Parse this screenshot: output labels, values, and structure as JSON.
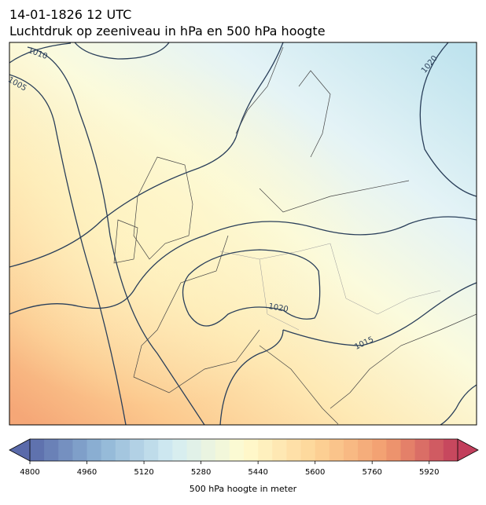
{
  "chart_data": {
    "type": "map",
    "title": "14-01-1826 12 UTC",
    "subtitle": "Luchtdruk op zeeniveau in hPa en 500 hPa hoogte",
    "contour_labels": [
      1010,
      1005,
      1020,
      1020,
      1015
    ],
    "colorbar": {
      "label": "500 hPa hoogte in meter",
      "lim": [
        4800,
        6000
      ],
      "step": 40,
      "ticks": [
        4800,
        4960,
        5120,
        5280,
        5440,
        5600,
        5760,
        5920
      ],
      "colormap": [
        "#5a6aaa",
        "#8fb6d6",
        "#d4ecf3",
        "#fffbcf",
        "#fdd597",
        "#f29c6f",
        "#c23f5c"
      ]
    }
  }
}
